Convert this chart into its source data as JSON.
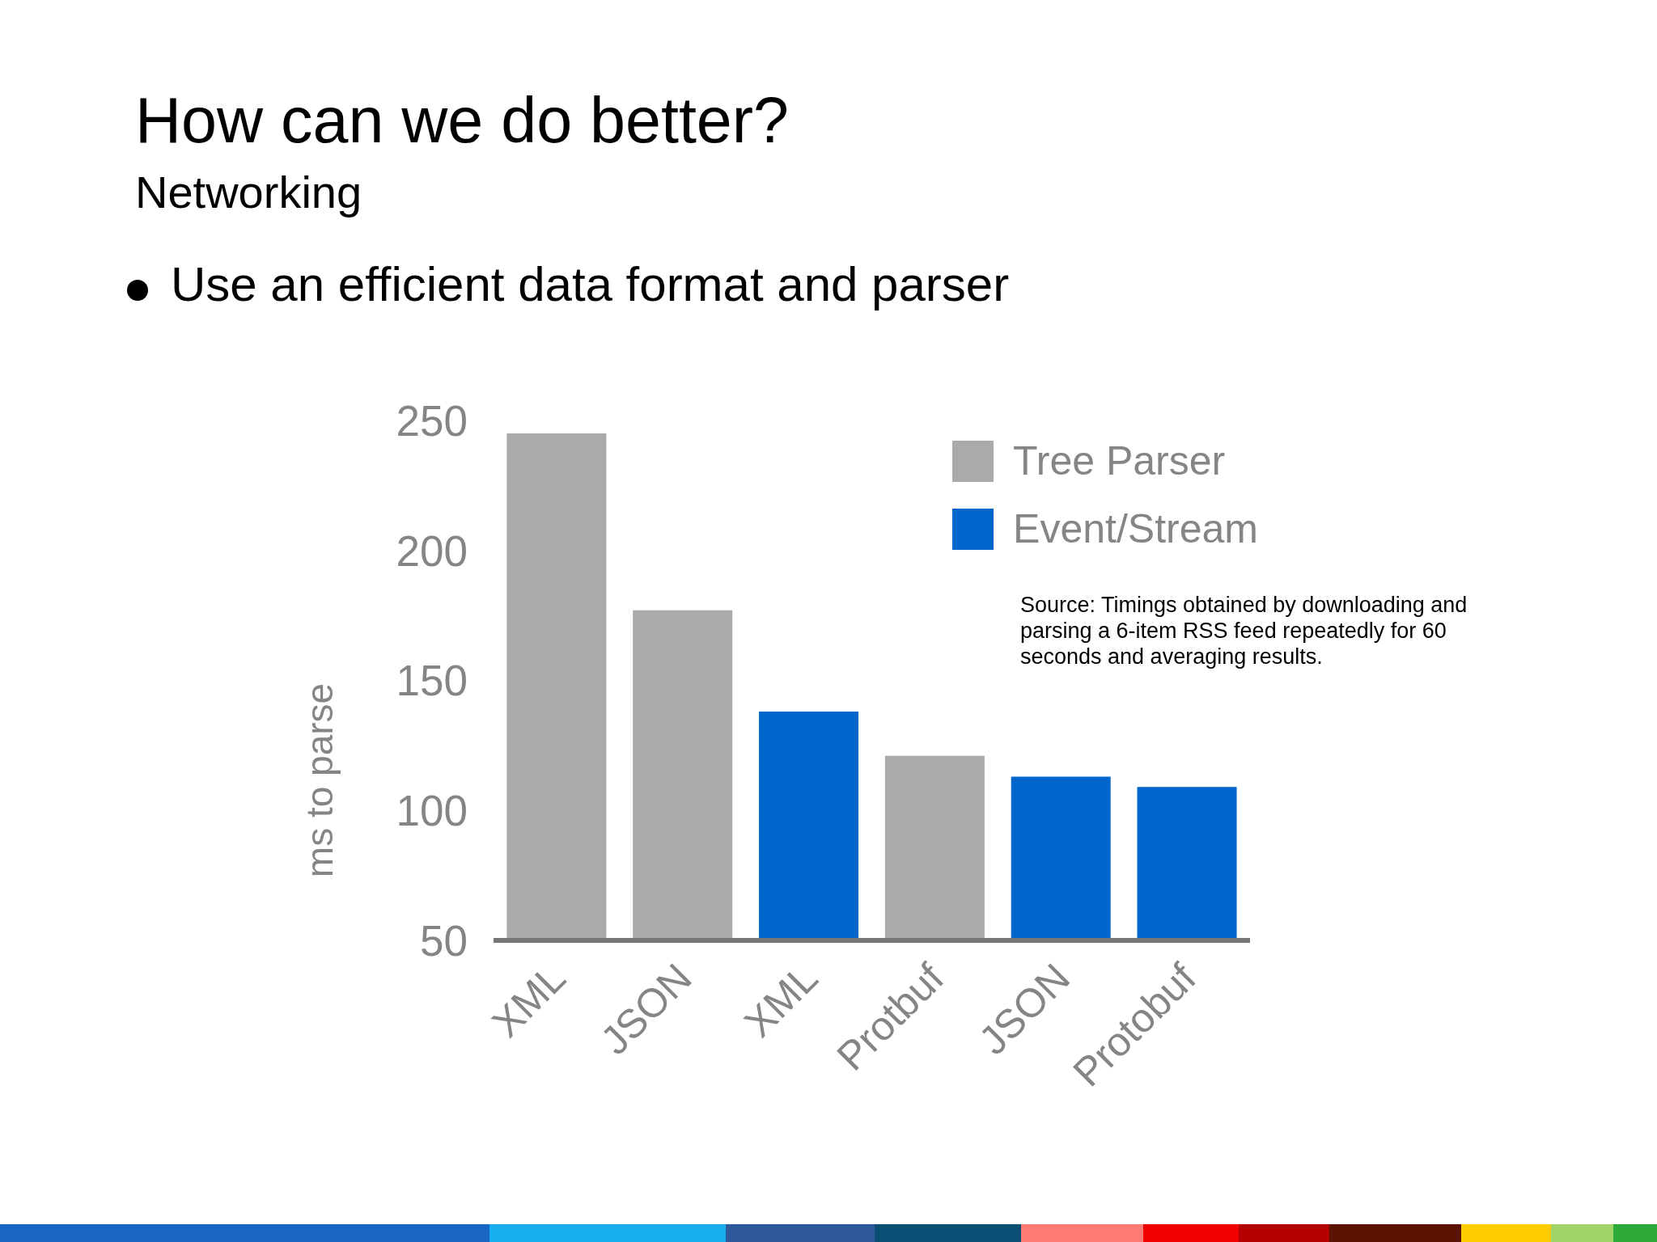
{
  "chart_data": {
    "type": "bar",
    "title": "How can we do better?",
    "subtitle": "Networking",
    "ylabel": "ms to parse",
    "annotations": [
      "Use an efficient data format and parser",
      "Source: Timings obtained by downloading and parsing a 6-item RSS feed repeatedly for 60 seconds and averaging results."
    ],
    "categories": [
      "XML",
      "JSON",
      "XML",
      "Protbuf",
      "JSON",
      "Protobuf"
    ],
    "series": [
      {
        "name": "Tree Parser",
        "color": "#aaaaaa",
        "values": [
          245,
          177,
          null,
          121,
          null,
          null
        ]
      },
      {
        "name": "Event/Stream",
        "color": "#0066cc",
        "values": [
          null,
          null,
          138,
          null,
          113,
          109
        ]
      }
    ],
    "ylim": [
      50,
      250
    ],
    "yticks": [
      50,
      100,
      150,
      200,
      250
    ],
    "legend": "top right"
  }
}
